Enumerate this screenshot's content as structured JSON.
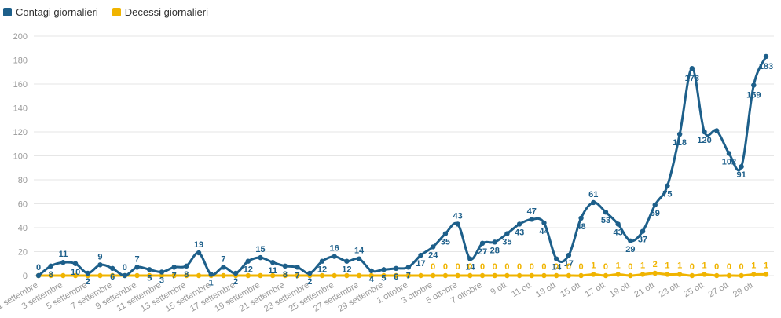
{
  "legend": {
    "series1": "Contagi giornalieri",
    "series2": "Decessi giornalieri"
  },
  "colors": {
    "contagi": "#1d5f8a",
    "decessi": "#f0b400",
    "grid": "#e6e6e6",
    "tick": "#999999"
  },
  "chart_data": {
    "type": "line",
    "title": "",
    "xlabel": "",
    "ylabel": "",
    "ylim": [
      0,
      200
    ],
    "yticks": [
      0,
      20,
      40,
      60,
      80,
      100,
      120,
      140,
      160,
      180,
      200
    ],
    "grid": true,
    "legend_position": "top-left",
    "categories": [
      "1 settembre",
      "2 settembre",
      "3 settembre",
      "4 settembre",
      "5 settembre",
      "6 settembre",
      "7 settembre",
      "8 settembre",
      "9 settembre",
      "10 settembre",
      "11 settembre",
      "12 settembre",
      "13 settembre",
      "14 settembre",
      "15 settembre",
      "16 settembre",
      "17 settembre",
      "18 settembre",
      "19 settembre",
      "20 settembre",
      "21 settembre",
      "22 settembre",
      "23 settembre",
      "24 settembre",
      "25 settembre",
      "26 settembre",
      "27 settembre",
      "28 settembre",
      "29 settembre",
      "30 settembre",
      "1 ottobre",
      "2 ottobre",
      "3 ottobre",
      "4 ottobre",
      "5 ottobre",
      "6 ottobre",
      "7 ottobre",
      "8 ottobre",
      "9 ott",
      "10 ott",
      "11 ott",
      "12 ott",
      "13 ott",
      "14 ott",
      "15 ott",
      "16 ott",
      "17 ott",
      "18 ott",
      "19 ott",
      "20 ott",
      "21 ott",
      "22 ott",
      "23 ott",
      "24 ott",
      "25 ott",
      "26 ott",
      "27 ott",
      "28 ott",
      "29 ott",
      "30 ott"
    ],
    "x_tick_labels": [
      "1 settembre",
      "3 settembre",
      "5 settembre",
      "7 settembre",
      "9 settembre",
      "11 settembre",
      "13 settembre",
      "15 settembre",
      "17 settembre",
      "19 settembre",
      "21 settembre",
      "23 settembre",
      "25 settembre",
      "27 settembre",
      "29 settembre",
      "1 ottobre",
      "3 ottobre",
      "5 ottobre",
      "7 ottobre",
      "9 ott",
      "11 ott",
      "13 ott",
      "15 ott",
      "17 ott",
      "19 ott",
      "21 ott",
      "23 ott",
      "25 ott",
      "27 ott",
      "29 ott"
    ],
    "series": [
      {
        "name": "Contagi giornalieri",
        "values": [
          0,
          8,
          11,
          10,
          2,
          9,
          6,
          0,
          7,
          5,
          3,
          7,
          8,
          19,
          1,
          7,
          2,
          12,
          15,
          11,
          8,
          7,
          2,
          12,
          16,
          12,
          14,
          4,
          5,
          6,
          7,
          17,
          24,
          35,
          43,
          14,
          27,
          28,
          35,
          43,
          47,
          44,
          14,
          17,
          48,
          61,
          53,
          43,
          29,
          37,
          59,
          75,
          118,
          173,
          120,
          121,
          102,
          91,
          159,
          183
        ],
        "labels": [
          "0",
          "8",
          "11",
          "10",
          "2",
          "9",
          "6",
          "0",
          "7",
          "5",
          "3",
          "7",
          "8",
          "19",
          "1",
          "7",
          "2",
          "12",
          "15",
          "11",
          "8",
          "7",
          "2",
          "12",
          "16",
          "12",
          "14",
          "4",
          "5",
          "6",
          "7",
          "17",
          "24",
          "35",
          "43",
          "14",
          "27",
          "28",
          "35",
          "43",
          "47",
          "44",
          "14",
          "17",
          "48",
          "61",
          "53",
          "43",
          "29",
          "37",
          "59",
          "75",
          "118",
          "173",
          "120",
          "",
          "102",
          "91",
          "159",
          "183"
        ]
      },
      {
        "name": "Decessi giornalieri",
        "values": [
          0,
          0,
          0,
          0,
          0,
          0,
          0,
          0,
          0,
          0,
          0,
          0,
          0,
          0,
          0,
          0,
          0,
          0,
          0,
          0,
          0,
          0,
          0,
          0,
          0,
          0,
          0,
          0,
          0,
          0,
          0,
          0,
          0,
          0,
          0,
          0,
          0,
          0,
          0,
          0,
          0,
          0,
          0,
          0,
          0,
          1,
          0,
          1,
          0,
          1,
          2,
          1,
          1,
          0,
          1,
          0,
          0,
          0,
          1,
          1
        ],
        "labels": [
          "",
          "",
          "",
          "",
          "",
          "",
          "",
          "",
          "",
          "",
          "",
          "",
          "",
          "",
          "",
          "",
          "",
          "",
          "",
          "",
          "",
          "",
          "",
          "",
          "",
          "",
          "",
          "",
          "",
          "",
          "",
          "",
          "0",
          "0",
          "0",
          "0",
          "0",
          "0",
          "0",
          "0",
          "0",
          "0",
          "0",
          "0",
          "0",
          "1",
          "0",
          "1",
          "0",
          "1",
          "2",
          "1",
          "1",
          "0",
          "1",
          "0",
          "0",
          "0",
          "1",
          "1"
        ]
      }
    ]
  }
}
